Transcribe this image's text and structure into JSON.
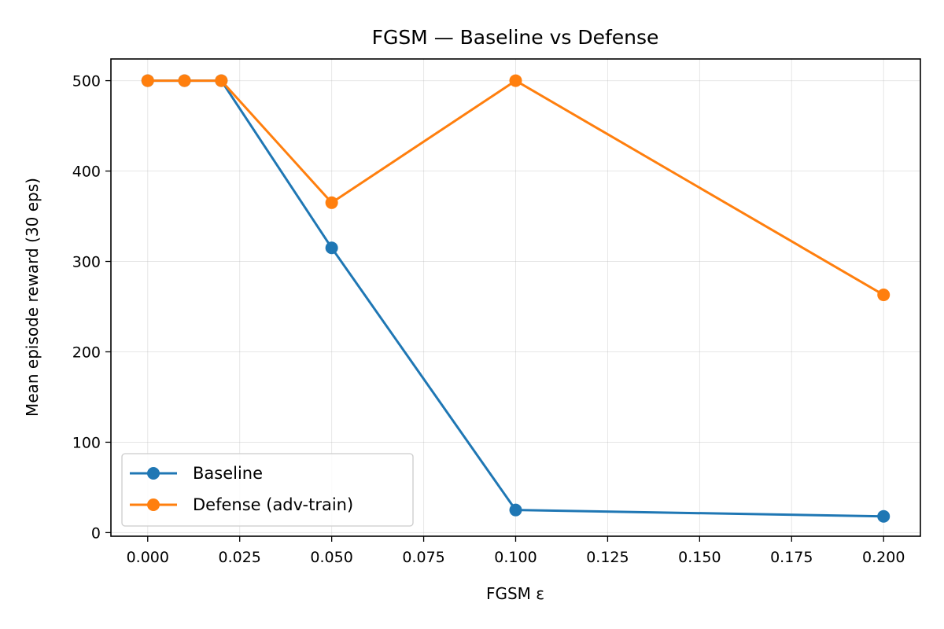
{
  "chart_data": {
    "type": "line",
    "title": "FGSM — Baseline vs Defense",
    "xlabel": "FGSM ε",
    "ylabel": "Mean episode reward (30 eps)",
    "xlim": [
      -0.01,
      0.21
    ],
    "ylim": [
      -4,
      524
    ],
    "x_ticks": [
      0.0,
      0.025,
      0.05,
      0.075,
      0.1,
      0.125,
      0.15,
      0.175,
      0.2
    ],
    "x_tick_labels": [
      "0.000",
      "0.025",
      "0.050",
      "0.075",
      "0.100",
      "0.125",
      "0.150",
      "0.175",
      "0.200"
    ],
    "y_ticks": [
      0,
      100,
      200,
      300,
      400,
      500
    ],
    "y_tick_labels": [
      "0",
      "100",
      "200",
      "300",
      "400",
      "500"
    ],
    "grid": true,
    "legend_position": "lower-left",
    "series": [
      {
        "name": "Baseline",
        "color": "#1f77b4",
        "x": [
          0.0,
          0.01,
          0.02,
          0.05,
          0.1,
          0.2
        ],
        "y": [
          500,
          500,
          500,
          315,
          25,
          18
        ]
      },
      {
        "name": "Defense (adv-train)",
        "color": "#ff7f0e",
        "x": [
          0.0,
          0.01,
          0.02,
          0.05,
          0.1,
          0.2
        ],
        "y": [
          500,
          500,
          500,
          365,
          500,
          263
        ]
      }
    ]
  }
}
